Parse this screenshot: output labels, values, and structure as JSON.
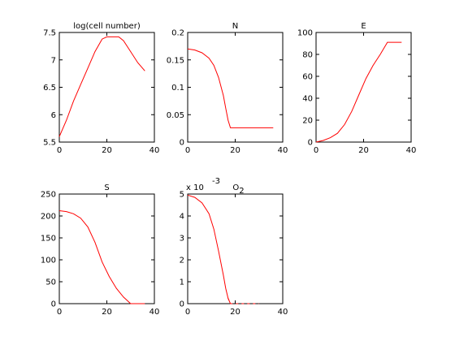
{
  "colors": {
    "background": "#ffffff",
    "axes": "#000000",
    "line": "#ff0000"
  },
  "chart_data": [
    {
      "type": "line",
      "title": "log(cell number)",
      "xlim": [
        0,
        40
      ],
      "ylim": [
        5.5,
        7.5
      ],
      "xticks": [
        0,
        20,
        40
      ],
      "xtick_labels": [
        "0",
        "20",
        "40"
      ],
      "yticks": [
        5.5,
        6,
        6.5,
        7,
        7.5
      ],
      "ytick_labels": [
        "5.5",
        "6",
        "6.5",
        "7",
        "7.5"
      ],
      "series": [
        {
          "color": "#ff0000",
          "x": [
            0,
            3,
            6,
            9,
            12,
            15,
            18,
            20,
            22,
            25,
            27,
            30,
            33,
            36
          ],
          "y": [
            5.6,
            5.9,
            6.25,
            6.55,
            6.85,
            7.15,
            7.38,
            7.42,
            7.42,
            7.42,
            7.35,
            7.15,
            6.95,
            6.8
          ]
        }
      ]
    },
    {
      "type": "line",
      "title": "N",
      "xlim": [
        0,
        40
      ],
      "ylim": [
        0,
        0.2
      ],
      "xticks": [
        0,
        20,
        40
      ],
      "xtick_labels": [
        "0",
        "20",
        "40"
      ],
      "yticks": [
        0,
        0.05,
        0.1,
        0.15,
        0.2
      ],
      "ytick_labels": [
        "0",
        "0.05",
        "0.1",
        "0.15",
        "0.2"
      ],
      "series": [
        {
          "color": "#ff0000",
          "x": [
            0,
            3,
            6,
            9,
            11,
            13,
            15,
            16,
            17,
            18,
            20,
            25,
            30,
            36
          ],
          "y": [
            0.17,
            0.168,
            0.163,
            0.153,
            0.14,
            0.118,
            0.085,
            0.062,
            0.04,
            0.026,
            0.026,
            0.026,
            0.026,
            0.026
          ]
        }
      ]
    },
    {
      "type": "line",
      "title": "E",
      "xlim": [
        0,
        40
      ],
      "ylim": [
        0,
        100
      ],
      "xticks": [
        0,
        20,
        40
      ],
      "xtick_labels": [
        "0",
        "20",
        "40"
      ],
      "yticks": [
        0,
        20,
        40,
        60,
        80,
        100
      ],
      "ytick_labels": [
        "0",
        "20",
        "40",
        "60",
        "80",
        "100"
      ],
      "series": [
        {
          "color": "#ff0000",
          "x": [
            0,
            3,
            6,
            9,
            12,
            15,
            18,
            21,
            24,
            27,
            30,
            33,
            36
          ],
          "y": [
            0,
            1.5,
            4,
            8,
            16,
            28,
            43,
            58,
            70,
            80,
            91,
            91,
            91
          ]
        }
      ]
    },
    {
      "type": "line",
      "title": "S",
      "xlim": [
        0,
        40
      ],
      "ylim": [
        0,
        250
      ],
      "xticks": [
        0,
        20,
        40
      ],
      "xtick_labels": [
        "0",
        "20",
        "40"
      ],
      "yticks": [
        0,
        50,
        100,
        150,
        200,
        250
      ],
      "ytick_labels": [
        "0",
        "50",
        "100",
        "150",
        "200",
        "250"
      ],
      "series": [
        {
          "color": "#ff0000",
          "x": [
            0,
            3,
            6,
            9,
            12,
            15,
            18,
            21,
            24,
            27,
            30,
            33,
            36
          ],
          "y": [
            212,
            210,
            205,
            195,
            175,
            140,
            95,
            62,
            35,
            15,
            0,
            0,
            0
          ]
        }
      ]
    },
    {
      "type": "line",
      "title": "O",
      "title_subscript": "2",
      "exponent_label": "x 10",
      "exponent_power": "-3",
      "xlim": [
        0,
        40
      ],
      "ylim": [
        0,
        5
      ],
      "xticks": [
        0,
        20,
        40
      ],
      "xtick_labels": [
        "0",
        "20",
        "40"
      ],
      "yticks": [
        0,
        1,
        2,
        3,
        4,
        5
      ],
      "ytick_labels": [
        "0",
        "1",
        "2",
        "3",
        "4",
        "5"
      ],
      "series": [
        {
          "color": "#ff0000",
          "x": [
            0,
            3,
            6,
            9,
            11,
            13,
            15,
            16,
            17,
            18,
            20,
            25,
            30
          ],
          "y": [
            4.95,
            4.85,
            4.6,
            4.1,
            3.4,
            2.4,
            1.3,
            0.7,
            0.25,
            0,
            0,
            0,
            0
          ],
          "dash_start_x": 18
        }
      ]
    }
  ]
}
